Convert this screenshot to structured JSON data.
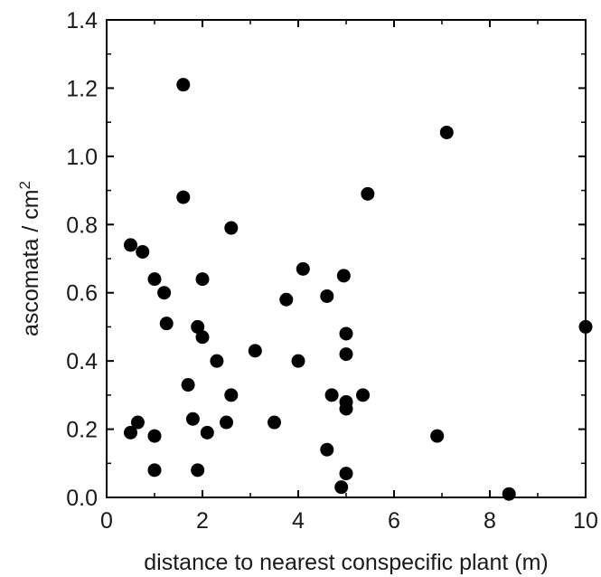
{
  "chart_data": {
    "type": "scatter",
    "title": "",
    "xlabel": "distance to nearest conspecific plant (m)",
    "ylabel": "ascomata / cm",
    "ylabel_superscript": "2",
    "xlim": [
      0,
      10
    ],
    "ylim": [
      0,
      1.4
    ],
    "x_ticks": [
      0,
      2,
      4,
      6,
      8,
      10
    ],
    "x_tick_labels": [
      "0",
      "2",
      "4",
      "6",
      "8",
      "10"
    ],
    "y_ticks": [
      0.0,
      0.2,
      0.4,
      0.6,
      0.8,
      1.0,
      1.2,
      1.4
    ],
    "y_tick_labels": [
      "0.0",
      "0.2",
      "0.4",
      "0.6",
      "0.8",
      "1.0",
      "1.2",
      "1.4"
    ],
    "grid": false,
    "marker_color": "#000000",
    "series": [
      {
        "points": [
          [
            0.5,
            0.74
          ],
          [
            0.5,
            0.19
          ],
          [
            0.65,
            0.22
          ],
          [
            0.75,
            0.72
          ],
          [
            1.0,
            0.64
          ],
          [
            1.0,
            0.18
          ],
          [
            1.0,
            0.08
          ],
          [
            1.2,
            0.6
          ],
          [
            1.25,
            0.51
          ],
          [
            1.6,
            1.21
          ],
          [
            1.6,
            0.88
          ],
          [
            1.7,
            0.33
          ],
          [
            1.8,
            0.23
          ],
          [
            1.9,
            0.5
          ],
          [
            1.9,
            0.08
          ],
          [
            2.0,
            0.64
          ],
          [
            2.0,
            0.47
          ],
          [
            2.1,
            0.19
          ],
          [
            2.3,
            0.4
          ],
          [
            2.5,
            0.22
          ],
          [
            2.6,
            0.79
          ],
          [
            2.6,
            0.3
          ],
          [
            3.1,
            0.43
          ],
          [
            3.5,
            0.22
          ],
          [
            3.75,
            0.58
          ],
          [
            4.0,
            0.4
          ],
          [
            4.1,
            0.67
          ],
          [
            4.6,
            0.59
          ],
          [
            4.6,
            0.14
          ],
          [
            4.7,
            0.3
          ],
          [
            4.9,
            0.03
          ],
          [
            4.95,
            0.65
          ],
          [
            5.0,
            0.48
          ],
          [
            5.0,
            0.42
          ],
          [
            5.0,
            0.28
          ],
          [
            5.0,
            0.26
          ],
          [
            5.0,
            0.07
          ],
          [
            5.35,
            0.3
          ],
          [
            5.45,
            0.89
          ],
          [
            6.9,
            0.18
          ],
          [
            7.1,
            1.07
          ],
          [
            8.4,
            0.01
          ],
          [
            10.0,
            0.5
          ]
        ]
      }
    ]
  }
}
